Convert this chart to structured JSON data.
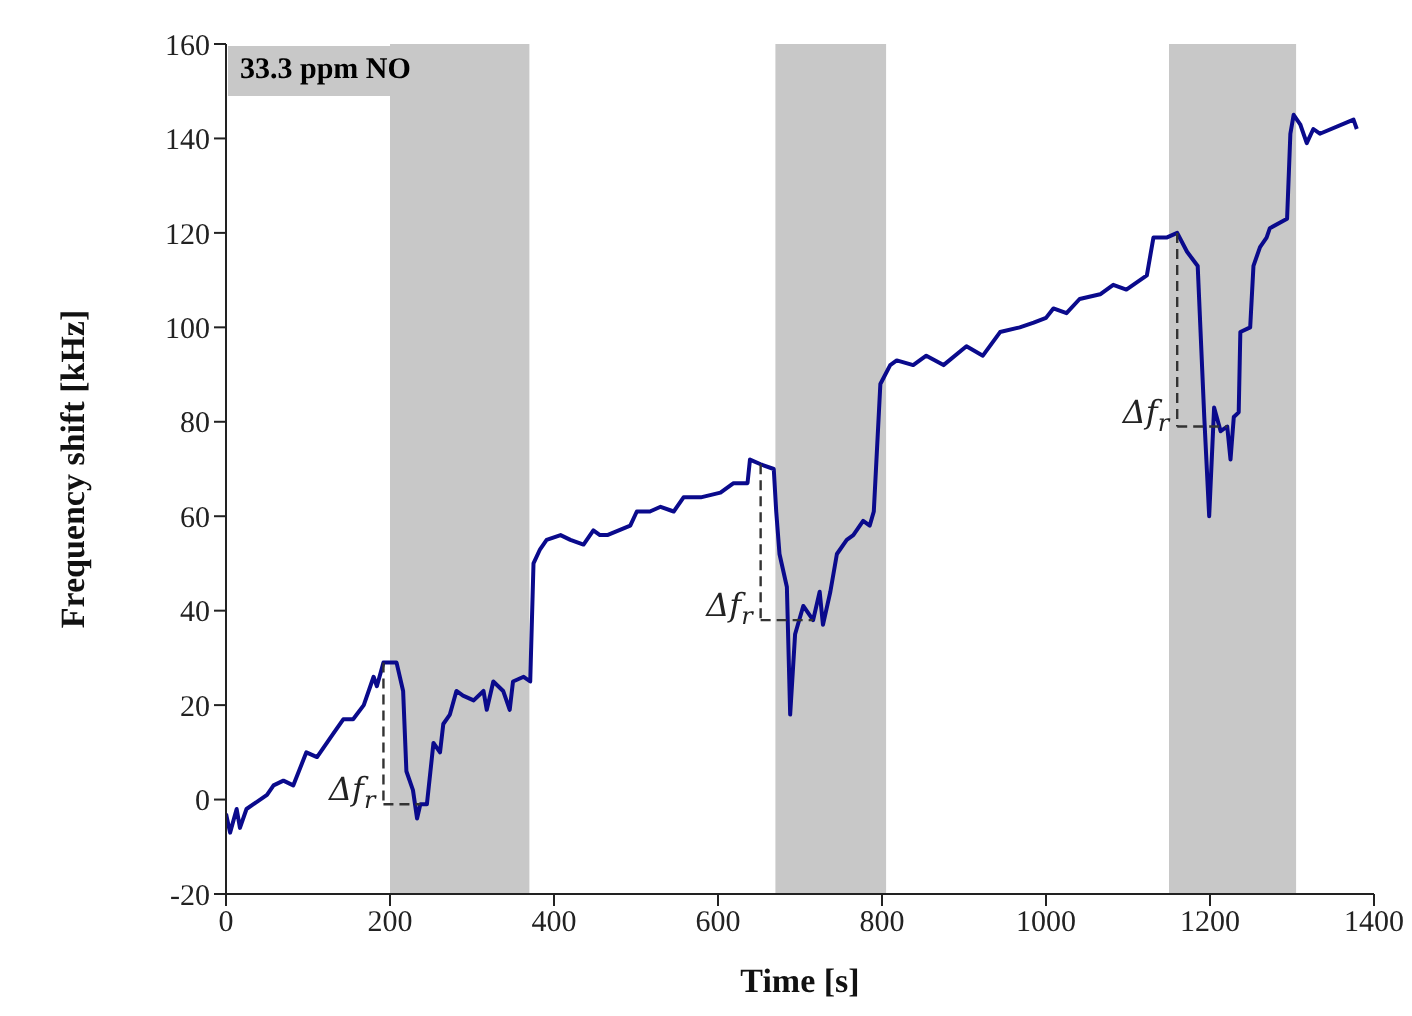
{
  "chart_data": {
    "type": "line",
    "xlabel": "Time [s]",
    "ylabel": "Frequency shift [kHz]",
    "xlim": [
      0,
      1400
    ],
    "ylim": [
      -20,
      160
    ],
    "xticks": [
      0,
      200,
      400,
      600,
      800,
      1000,
      1200,
      1400
    ],
    "yticks": [
      -20,
      0,
      20,
      40,
      60,
      80,
      100,
      120,
      140,
      160
    ],
    "grid": false,
    "marker": "none",
    "line_style": "solid",
    "series": [
      {
        "color": "#0a0a8c",
        "x": [
          0,
          5,
          13,
          17,
          25,
          50,
          58,
          70,
          82,
          98,
          111,
          131,
          143,
          155,
          168,
          176,
          180,
          184,
          192,
          208,
          216,
          220,
          228,
          233,
          237,
          245,
          253,
          261,
          265,
          273,
          281,
          289,
          302,
          314,
          318,
          326,
          338,
          346,
          350,
          363,
          371,
          375,
          383,
          391,
          408,
          420,
          436,
          448,
          456,
          465,
          493,
          501,
          517,
          530,
          546,
          558,
          579,
          603,
          619,
          636,
          639,
          652,
          668,
          671,
          675,
          684,
          688,
          694,
          704,
          716,
          724,
          728,
          737,
          745,
          757,
          765,
          777,
          785,
          790,
          798,
          810,
          818,
          838,
          854,
          875,
          903,
          923,
          944,
          968,
          985,
          1000,
          1009,
          1025,
          1041,
          1066,
          1082,
          1098,
          1123,
          1131,
          1147,
          1160,
          1172,
          1185,
          1193,
          1199,
          1205,
          1213,
          1221,
          1225,
          1229,
          1235,
          1237,
          1249,
          1253,
          1261,
          1269,
          1273,
          1294,
          1298,
          1302,
          1310,
          1318,
          1326,
          1334,
          1375,
          1379
        ],
        "values": [
          -3,
          -7,
          -2,
          -6,
          -2,
          1,
          3,
          4,
          3,
          10,
          9,
          14,
          17,
          17,
          20,
          24,
          26,
          24,
          29,
          29,
          23,
          6,
          2,
          -4,
          -1,
          -1,
          12,
          10,
          16,
          18,
          23,
          22,
          21,
          23,
          19,
          25,
          23,
          19,
          25,
          26,
          25,
          50,
          53,
          55,
          56,
          55,
          54,
          57,
          56,
          56,
          58,
          61,
          61,
          62,
          61,
          64,
          64,
          65,
          67,
          67,
          72,
          71,
          70,
          61,
          52,
          45,
          18,
          35,
          41,
          38,
          44,
          37,
          44,
          52,
          55,
          56,
          59,
          58,
          61,
          88,
          92,
          93,
          92,
          94,
          92,
          96,
          94,
          99,
          100,
          101,
          102,
          104,
          103,
          106,
          107,
          109,
          108,
          111,
          119,
          119,
          120,
          116,
          113,
          81,
          60,
          83,
          78,
          79,
          72,
          81,
          82,
          99,
          100,
          113,
          117,
          119,
          121,
          123,
          141,
          145,
          143,
          139,
          142,
          141,
          144,
          142
        ]
      }
    ],
    "bands": [
      {
        "axis": "x",
        "from": 200,
        "to": 370,
        "color": "#c8c8c8"
      },
      {
        "axis": "x",
        "from": 670,
        "to": 805,
        "color": "#c8c8c8"
      },
      {
        "axis": "x",
        "from": 1150,
        "to": 1305,
        "color": "#c8c8c8"
      }
    ],
    "annotations": [
      "33.3 ppm NO",
      {
        "text": "Δf$_{r}$",
        "x": 237,
        "y": -1
      },
      {
        "text": "Δf$_{r}$",
        "x": 716,
        "y": 38
      },
      {
        "text": "Δf$_{r}$",
        "x": 1221,
        "y": 79
      }
    ]
  }
}
